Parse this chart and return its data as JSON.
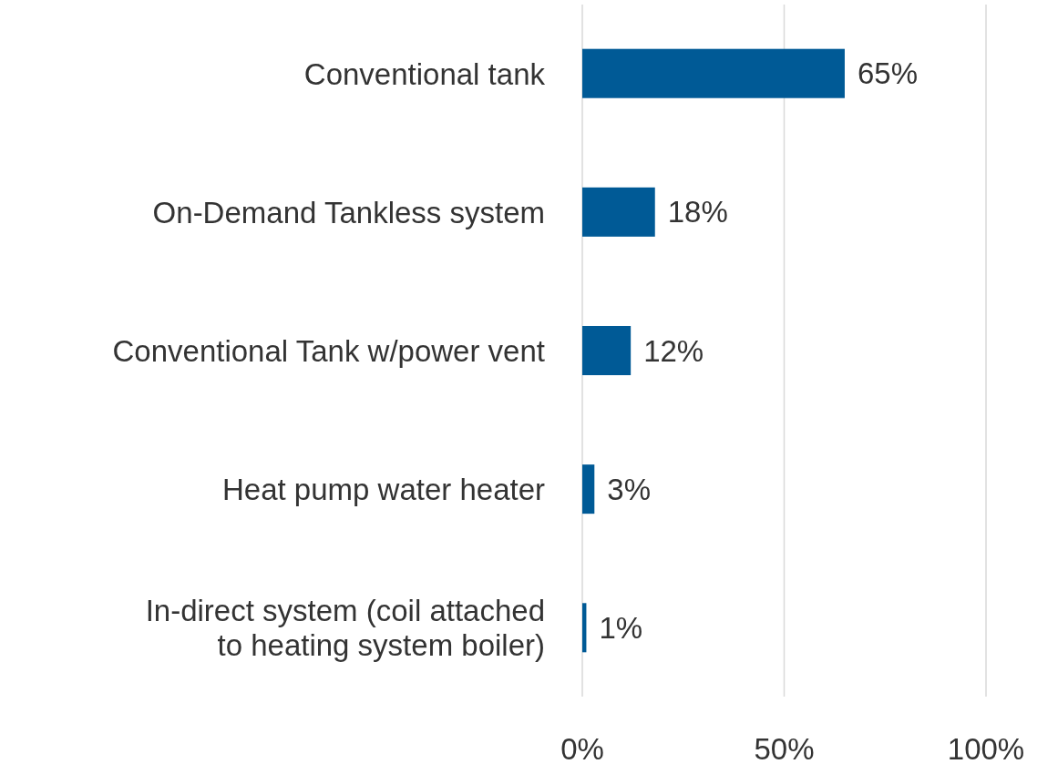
{
  "chart_data": {
    "type": "bar",
    "orientation": "horizontal",
    "categories": [
      "Conventional tank",
      "On-Demand Tankless system",
      "Conventional Tank w/power vent",
      "Heat pump water heater",
      "In-direct system (coil attached to heating system boiler)"
    ],
    "values": [
      65,
      18,
      12,
      3,
      1
    ],
    "value_labels": [
      "65%",
      "18%",
      "12%",
      "3%",
      "1%"
    ],
    "color": "#005a96",
    "xlim": [
      0,
      100
    ],
    "xticks": [
      {
        "value": 0,
        "label": "0%"
      },
      {
        "value": 50,
        "label": "50%"
      },
      {
        "value": 100,
        "label": "100%"
      }
    ],
    "grid": "x"
  }
}
